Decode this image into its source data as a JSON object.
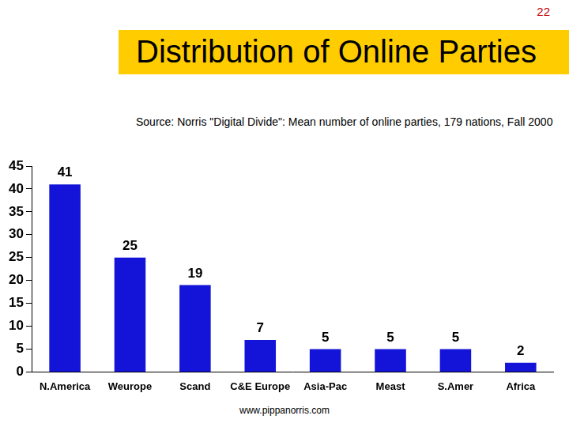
{
  "page_number": "22",
  "footer": "www.pippanorris.com",
  "chart_data": {
    "type": "bar",
    "title": "Distribution of Online Parties",
    "subtitle": "Source: Norris \"Digital Divide\": Mean number of online parties, 179 nations, Fall 2000",
    "categories": [
      "N.America",
      "Weurope",
      "Scand",
      "C&E Europe",
      "Asia-Pac",
      "Meast",
      "S.Amer",
      "Africa"
    ],
    "values": [
      41,
      25,
      19,
      7,
      5,
      5,
      5,
      2
    ],
    "color": "#1414d8",
    "ylim": [
      0,
      45
    ],
    "yticks": [
      0,
      5,
      10,
      15,
      20,
      25,
      30,
      35,
      40,
      45
    ],
    "grid": false,
    "data_labels": true
  }
}
